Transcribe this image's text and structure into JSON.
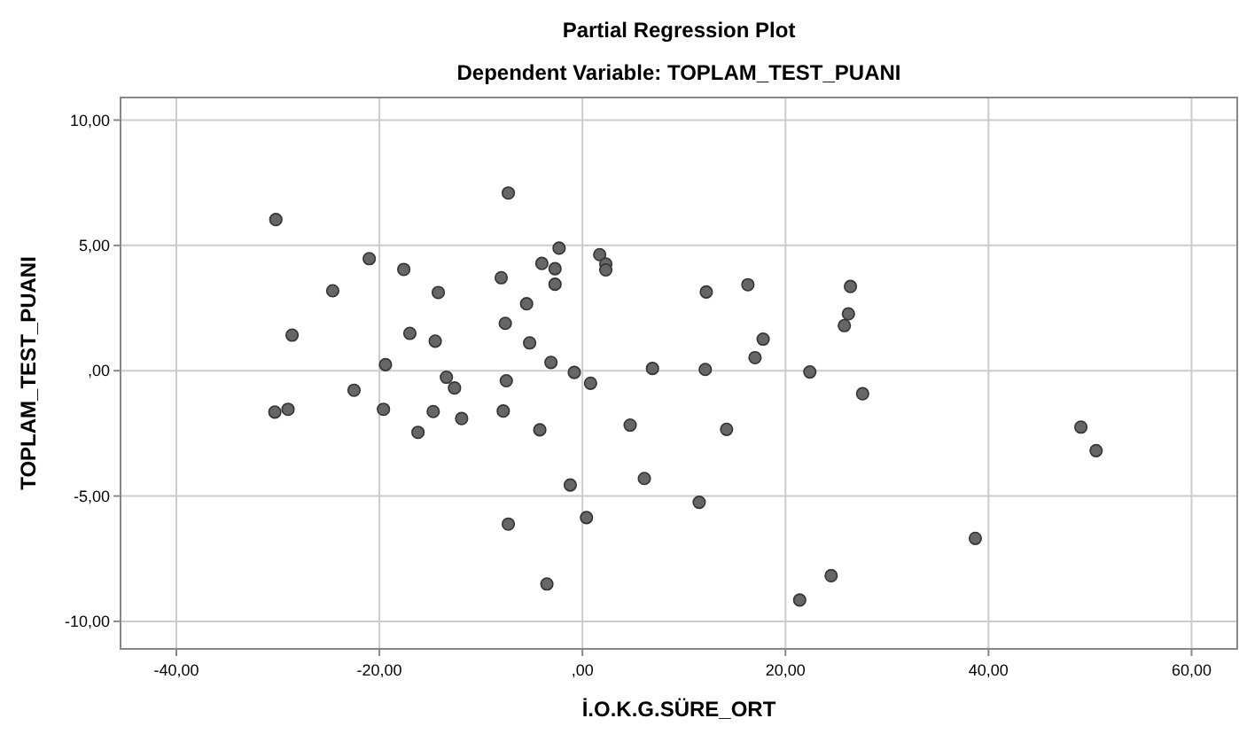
{
  "chart_data": {
    "type": "scatter",
    "title": "Partial Regression Plot",
    "subtitle": "Dependent Variable: TOPLAM_TEST_PUANI",
    "xlabel": "İ.O.K.G.SÜRE_ORT",
    "ylabel": "TOPLAM_TEST_PUANI",
    "xlim": [
      -45.5,
      64.5
    ],
    "ylim": [
      -11.1,
      10.9
    ],
    "xticks": [
      {
        "value": -40,
        "label": "-40,00"
      },
      {
        "value": -20,
        "label": "-20,00"
      },
      {
        "value": 0,
        "label": ",00"
      },
      {
        "value": 20,
        "label": "20,00"
      },
      {
        "value": 40,
        "label": "40,00"
      },
      {
        "value": 60,
        "label": "60,00"
      }
    ],
    "yticks": [
      {
        "value": -10,
        "label": "-10,00"
      },
      {
        "value": -5,
        "label": "-5,00"
      },
      {
        "value": 0,
        "label": ",00"
      },
      {
        "value": 5,
        "label": "5,00"
      },
      {
        "value": 10,
        "label": "10,00"
      }
    ],
    "grid": true,
    "marker": "circle",
    "series": [
      {
        "color": "#666666",
        "x": [
          -30.2,
          -7.3,
          -2.3,
          -21.0,
          -17.6,
          -4.0,
          -2.7,
          -2.7,
          -8.0,
          -24.6,
          -14.2,
          -5.5,
          -7.6,
          -28.6,
          -17.0,
          -14.5,
          -5.2,
          -19.4,
          -3.1,
          -0.8,
          0.8,
          -13.4,
          -7.5,
          -12.6,
          -22.5,
          -30.3,
          -29.0,
          -19.6,
          -14.7,
          -7.8,
          -11.9,
          -16.2,
          -4.2,
          -1.2,
          -7.3,
          0.4,
          -3.5,
          1.7,
          2.3,
          2.3,
          12.2,
          16.3,
          26.4,
          26.2,
          25.8,
          17.8,
          17.0,
          6.9,
          12.1,
          22.4,
          27.6,
          4.7,
          14.2,
          6.1,
          11.5,
          24.5,
          21.4,
          49.1,
          50.6,
          38.7
        ],
        "values": [
          6.03,
          7.09,
          4.89,
          4.47,
          4.04,
          4.28,
          4.07,
          3.45,
          3.71,
          3.19,
          3.12,
          2.67,
          1.89,
          1.42,
          1.49,
          1.18,
          1.11,
          0.24,
          0.33,
          -0.07,
          -0.5,
          -0.26,
          -0.4,
          -0.69,
          -0.78,
          -1.65,
          -1.54,
          -1.54,
          -1.63,
          -1.61,
          -1.91,
          -2.46,
          -2.36,
          -4.56,
          -6.12,
          -5.86,
          -8.51,
          4.63,
          4.26,
          4.02,
          3.14,
          3.43,
          3.36,
          2.27,
          1.8,
          1.26,
          0.52,
          0.09,
          0.05,
          -0.05,
          -0.92,
          -2.17,
          -2.34,
          -4.3,
          -5.25,
          -8.18,
          -9.15,
          -2.25,
          -3.19,
          -6.69
        ]
      }
    ]
  }
}
